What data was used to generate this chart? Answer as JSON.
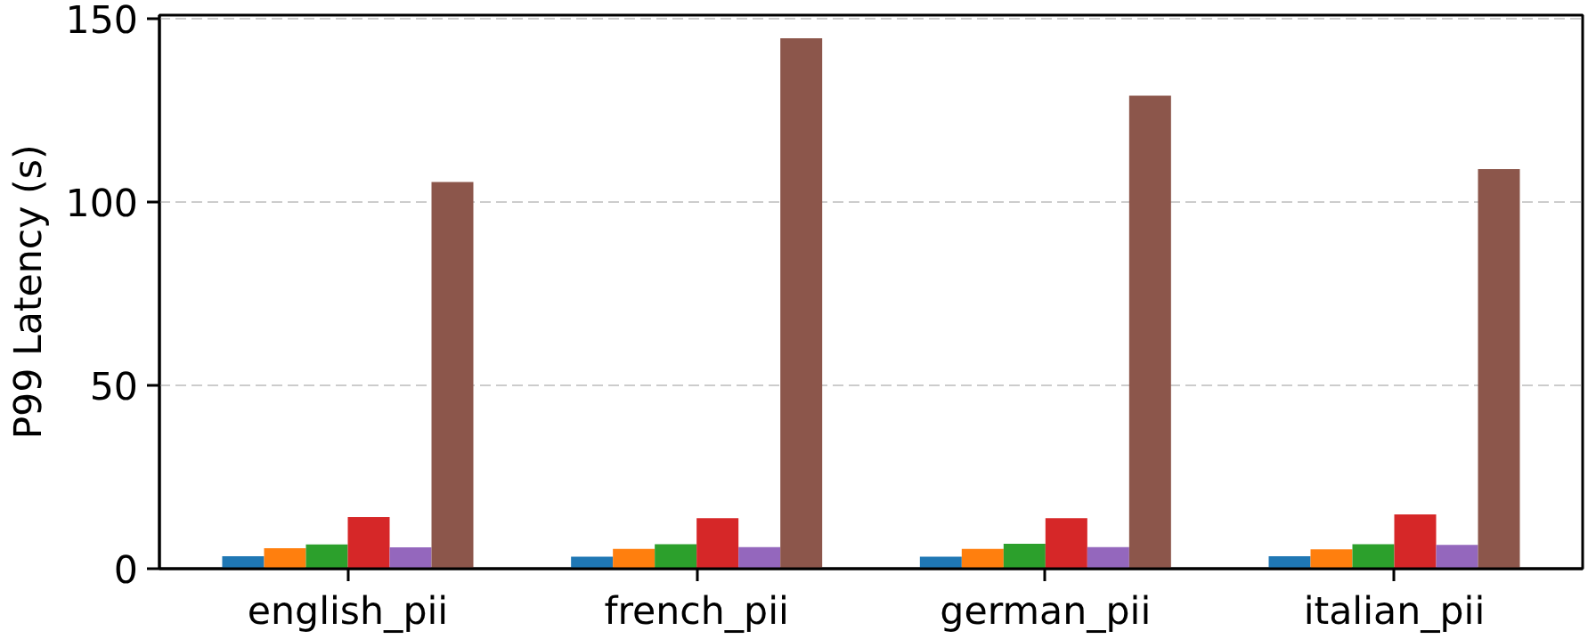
{
  "chart_data": {
    "type": "bar",
    "ylabel": "P99 Latency (s)",
    "categories": [
      "english_pii",
      "french_pii",
      "german_pii",
      "italian_pii"
    ],
    "series": [
      {
        "color": "#1f77b4",
        "values": [
          3.4,
          3.3,
          3.3,
          3.4
        ]
      },
      {
        "color": "#ff7f0e",
        "values": [
          5.6,
          5.4,
          5.4,
          5.3
        ]
      },
      {
        "color": "#2ca02c",
        "values": [
          6.6,
          6.7,
          6.8,
          6.7
        ]
      },
      {
        "color": "#d62728",
        "values": [
          14.1,
          13.8,
          13.8,
          14.8
        ]
      },
      {
        "color": "#9467bd",
        "values": [
          5.8,
          5.9,
          5.9,
          6.5
        ]
      },
      {
        "color": "#8c564b",
        "values": [
          105.5,
          144.7,
          129,
          109
        ]
      }
    ],
    "ylim": [
      0,
      151
    ],
    "yticks": [
      0,
      50,
      100,
      150
    ],
    "grid": "y"
  }
}
